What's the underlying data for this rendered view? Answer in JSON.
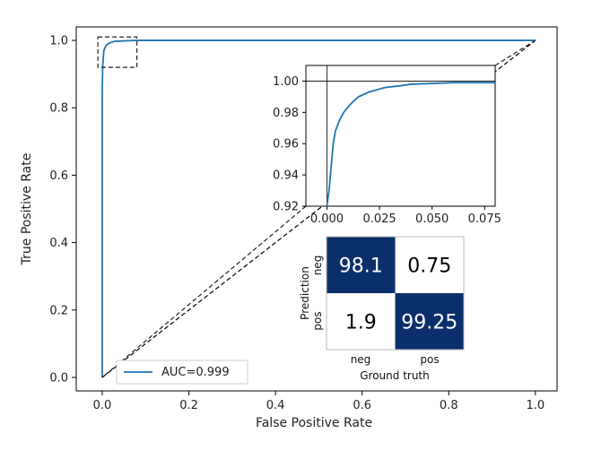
{
  "chart_data": [
    {
      "type": "line",
      "xlabel": "False Positive Rate",
      "ylabel": "True Positive Rate",
      "xlim": [
        -0.06,
        1.05
      ],
      "ylim": [
        -0.04,
        1.04
      ],
      "xticks": [
        "0.0",
        "0.2",
        "0.4",
        "0.6",
        "0.8",
        "1.0"
      ],
      "yticks": [
        "0.0",
        "0.2",
        "0.4",
        "0.6",
        "0.8",
        "1.0"
      ],
      "legend": {
        "label": "AUC=0.999",
        "placement": "lower-left"
      },
      "series": [
        {
          "name": "AUC=0.999",
          "color": "#1f77b4",
          "x": [
            0.0,
            0.0,
            0.001,
            0.002,
            0.003,
            0.004,
            0.006,
            0.008,
            0.011,
            0.015,
            0.02,
            0.028,
            0.04,
            0.06,
            0.08,
            1.0
          ],
          "y": [
            0.0,
            0.85,
            0.92,
            0.94,
            0.96,
            0.97,
            0.977,
            0.983,
            0.987,
            0.991,
            0.994,
            0.997,
            0.998,
            0.999,
            1.0,
            1.0
          ]
        },
        {
          "name": "",
          "style": "dashed",
          "color": "#000000",
          "x": [
            0.0,
            1.0
          ],
          "y": [
            0.0,
            1.0
          ]
        }
      ],
      "zoom_box": {
        "x": [
          -0.01,
          0.08
        ],
        "y": [
          0.92,
          1.01
        ]
      }
    },
    {
      "type": "line",
      "inset": true,
      "xlim": [
        -0.01,
        0.08
      ],
      "ylim": [
        0.92,
        1.01
      ],
      "xticks": [
        "0.000",
        "0.025",
        "0.050",
        "0.075"
      ],
      "yticks": [
        "0.92",
        "0.94",
        "0.96",
        "0.98",
        "1.00"
      ],
      "reference_lines": {
        "x": 0.0,
        "y": 1.0
      },
      "series": [
        {
          "name": "",
          "color": "#1f77b4",
          "x": [
            0.0,
            0.001,
            0.002,
            0.003,
            0.004,
            0.006,
            0.008,
            0.011,
            0.015,
            0.02,
            0.028,
            0.035,
            0.04,
            0.05,
            0.06,
            0.08
          ],
          "y": [
            0.92,
            0.93,
            0.945,
            0.96,
            0.968,
            0.975,
            0.98,
            0.985,
            0.99,
            0.993,
            0.996,
            0.997,
            0.998,
            0.9985,
            0.999,
            0.999
          ]
        }
      ]
    },
    {
      "type": "heatmap",
      "xlabel": "Ground truth",
      "ylabel": "Prediction",
      "xticks": [
        "neg",
        "pos"
      ],
      "yticks": [
        "neg",
        "pos"
      ],
      "values": [
        [
          98.1,
          0.75
        ],
        [
          1.9,
          99.25
        ]
      ],
      "labels": [
        [
          "98.1",
          "0.75"
        ],
        [
          "1.9",
          "99.25"
        ]
      ],
      "high_color": "#0b2f6b",
      "low_color": "#ffffff"
    }
  ]
}
